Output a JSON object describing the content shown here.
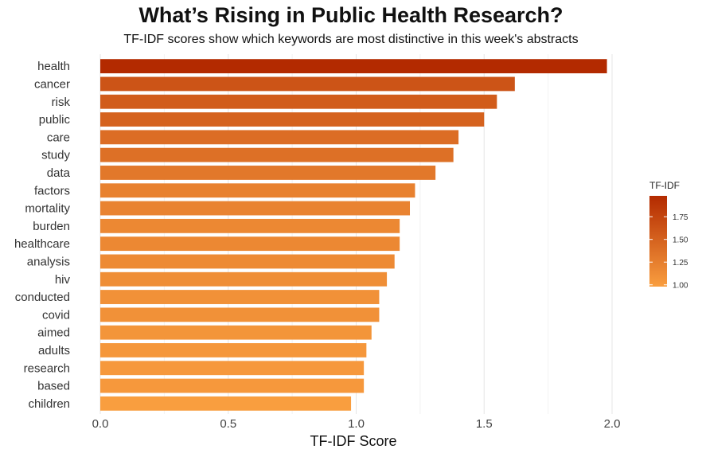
{
  "chart_data": {
    "type": "bar",
    "orientation": "horizontal",
    "title": "What’s Rising in Public Health Research?",
    "subtitle": "TF-IDF scores show which keywords are most distinctive in this week's abstracts",
    "xlabel": "TF-IDF Score",
    "ylabel": "",
    "xlim": [
      0,
      2.0
    ],
    "x_ticks": [
      "0.0",
      "0.5",
      "1.0",
      "1.5",
      "2.0"
    ],
    "x_tick_values": [
      0,
      0.5,
      1.0,
      1.5,
      2.0
    ],
    "grid": "vertical",
    "categories": [
      "health",
      "cancer",
      "risk",
      "public",
      "care",
      "study",
      "data",
      "factors",
      "mortality",
      "burden",
      "healthcare",
      "analysis",
      "hiv",
      "conducted",
      "covid",
      "aimed",
      "adults",
      "research",
      "based",
      "children"
    ],
    "values": [
      1.98,
      1.62,
      1.55,
      1.5,
      1.4,
      1.38,
      1.31,
      1.23,
      1.21,
      1.17,
      1.17,
      1.15,
      1.12,
      1.09,
      1.09,
      1.06,
      1.04,
      1.03,
      1.03,
      0.98
    ],
    "legend": {
      "title": "TF-IDF",
      "placement": "right",
      "ticks": [
        "1.75",
        "1.50",
        "1.25",
        "1.00"
      ],
      "tick_values": [
        1.75,
        1.5,
        1.25,
        1.0
      ],
      "range": [
        0.98,
        1.98
      ]
    },
    "colors": {
      "low": "#f99e3f",
      "high": "#b32a00"
    }
  }
}
